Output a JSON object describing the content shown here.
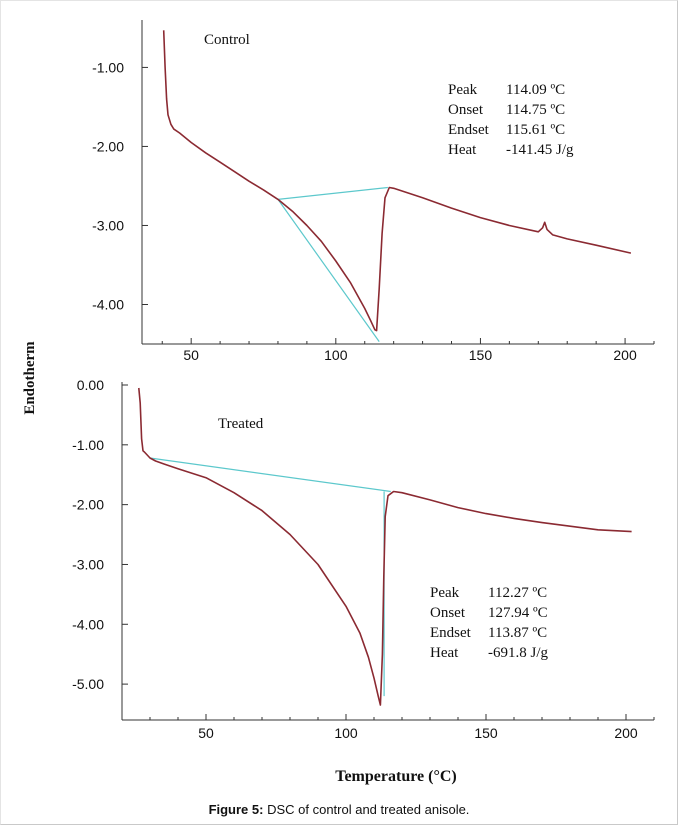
{
  "figure": {
    "caption_label": "Figure 5:",
    "caption_text": " DSC of control and treated anisole.",
    "ylabel": "Endotherm",
    "xlabel": "Temperature (°C)"
  },
  "colors": {
    "trace": "#8b2a32",
    "baseline": "#5cc8cc",
    "axis": "#333333"
  },
  "chart_data": [
    {
      "type": "line",
      "title": "Control",
      "xlim": [
        33,
        210
      ],
      "ylim": [
        -4.5,
        -0.4
      ],
      "xticks": [
        {
          "v": 50,
          "label": "50"
        },
        {
          "v": 100,
          "label": "100"
        },
        {
          "v": 150,
          "label": "150"
        },
        {
          "v": 200,
          "label": "200"
        }
      ],
      "yticks": [
        {
          "v": -1.0,
          "label": "-1.00"
        },
        {
          "v": -2.0,
          "label": "-2.00"
        },
        {
          "v": -3.0,
          "label": "-3.00"
        },
        {
          "v": -4.0,
          "label": "-4.00"
        }
      ],
      "annotations": [
        {
          "name": "Peak",
          "value": "114.09 ºC"
        },
        {
          "name": "Onset",
          "value": "114.75 ºC"
        },
        {
          "name": "Endset",
          "value": "115.61 ºC"
        },
        {
          "name": "Heat",
          "value": "-141.45 J/g"
        }
      ],
      "series": [
        {
          "role": "trace",
          "x": [
            40.5,
            41.0,
            41.5,
            42.0,
            43.0,
            44.0,
            46.0,
            50.0,
            55.0,
            60.0,
            65.0,
            70.0,
            75.0,
            80.0,
            85.0,
            90.0,
            95.0,
            100.0,
            105.0,
            110.0,
            112.0,
            113.5,
            114.1,
            115.0,
            116.0,
            117.0,
            118.5,
            120.0,
            130.0,
            140.0,
            150.0,
            160.0,
            170.0,
            171.5,
            172.2,
            173.0,
            175.0,
            180.0,
            190.0,
            202.0
          ],
          "y": [
            -0.53,
            -1.0,
            -1.4,
            -1.6,
            -1.72,
            -1.78,
            -1.83,
            -1.95,
            -2.08,
            -2.2,
            -2.32,
            -2.44,
            -2.55,
            -2.67,
            -2.82,
            -3.0,
            -3.2,
            -3.45,
            -3.72,
            -4.05,
            -4.2,
            -4.32,
            -4.33,
            -3.8,
            -3.1,
            -2.65,
            -2.52,
            -2.53,
            -2.65,
            -2.78,
            -2.9,
            -3.0,
            -3.08,
            -3.03,
            -2.96,
            -3.05,
            -3.12,
            -3.17,
            -3.25,
            -3.35
          ]
        },
        {
          "role": "baseline",
          "x": [
            80.0,
            118.0
          ],
          "y": [
            -2.67,
            -2.52
          ]
        },
        {
          "role": "tangent",
          "x": [
            80.0,
            115.0
          ],
          "y": [
            -2.67,
            -4.47
          ]
        }
      ]
    },
    {
      "type": "line",
      "title": "Treated",
      "xlim": [
        20,
        210
      ],
      "ylim": [
        -5.6,
        0.05
      ],
      "xticks": [
        {
          "v": 50,
          "label": "50"
        },
        {
          "v": 100,
          "label": "100"
        },
        {
          "v": 150,
          "label": "150"
        },
        {
          "v": 200,
          "label": "200"
        }
      ],
      "yticks": [
        {
          "v": 0.0,
          "label": "0.00"
        },
        {
          "v": -1.0,
          "label": "-1.00"
        },
        {
          "v": -2.0,
          "label": "-2.00"
        },
        {
          "v": -3.0,
          "label": "-3.00"
        },
        {
          "v": -4.0,
          "label": "-4.00"
        },
        {
          "v": -5.0,
          "label": "-5.00"
        }
      ],
      "annotations": [
        {
          "name": "Peak",
          "value": "112.27 ºC"
        },
        {
          "name": "Onset",
          "value": "127.94 ºC"
        },
        {
          "name": "Endset",
          "value": "113.87 ºC"
        },
        {
          "name": "Heat",
          "value": "-691.8 J/g"
        }
      ],
      "series": [
        {
          "role": "trace",
          "x": [
            26.0,
            26.5,
            27.0,
            27.5,
            28.0,
            29.0,
            30.0,
            32.0,
            35.0,
            40.0,
            50.0,
            60.0,
            70.0,
            80.0,
            90.0,
            100.0,
            105.0,
            108.0,
            110.0,
            111.5,
            112.3,
            113.0,
            113.5,
            114.0,
            115.0,
            117.0,
            120.0,
            130.0,
            140.0,
            150.0,
            160.0,
            170.0,
            180.0,
            190.0,
            202.0
          ],
          "y": [
            -0.05,
            -0.3,
            -0.9,
            -1.1,
            -1.12,
            -1.17,
            -1.22,
            -1.27,
            -1.32,
            -1.4,
            -1.55,
            -1.8,
            -2.1,
            -2.5,
            -3.0,
            -3.7,
            -4.15,
            -4.55,
            -4.9,
            -5.2,
            -5.35,
            -4.5,
            -3.2,
            -2.2,
            -1.85,
            -1.78,
            -1.8,
            -1.92,
            -2.05,
            -2.15,
            -2.23,
            -2.3,
            -2.36,
            -2.42,
            -2.45
          ]
        },
        {
          "role": "baseline",
          "x": [
            30.0,
            116.0
          ],
          "y": [
            -1.22,
            -1.78
          ]
        },
        {
          "role": "tangent",
          "x": [
            113.6,
            113.6
          ],
          "y": [
            -1.78,
            -5.2
          ]
        }
      ]
    }
  ]
}
